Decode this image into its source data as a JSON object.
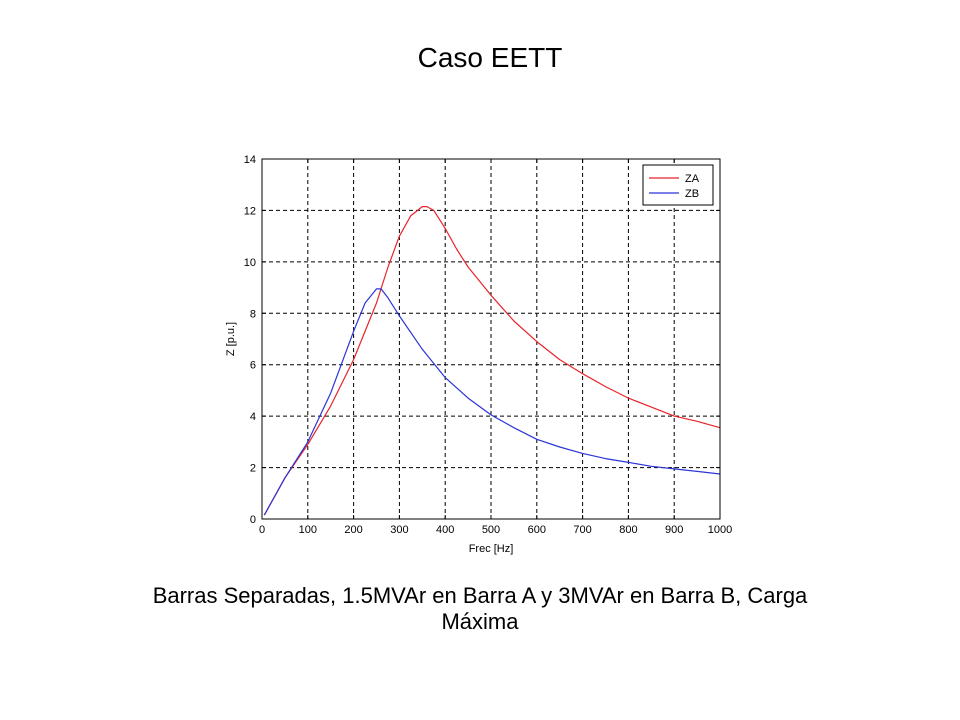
{
  "slide": {
    "title": "Caso EETT",
    "caption_line1": "Barras Separadas, 1.5MVAr en Barra A y 3MVAr en Barra B, Carga",
    "caption_line2": "Máxima"
  },
  "chart_data": {
    "type": "line",
    "xlabel": "Frec [Hz]",
    "ylabel": "Z [p.u.]",
    "xlim": [
      0,
      1000
    ],
    "ylim": [
      0,
      14
    ],
    "xticks": [
      0,
      100,
      200,
      300,
      400,
      500,
      600,
      700,
      800,
      900,
      1000
    ],
    "yticks": [
      0,
      2,
      4,
      6,
      8,
      10,
      12,
      14
    ],
    "grid": true,
    "legend_position": "top-right",
    "series": [
      {
        "name": "ZA",
        "color": "#e8232a",
        "x": [
          5,
          50,
          100,
          150,
          200,
          250,
          275,
          300,
          325,
          350,
          360,
          375,
          400,
          425,
          450,
          500,
          550,
          600,
          650,
          700,
          750,
          800,
          850,
          900,
          950,
          1000
        ],
        "y": [
          0.15,
          1.6,
          2.9,
          4.4,
          6.2,
          8.4,
          9.8,
          11.0,
          11.8,
          12.15,
          12.15,
          12.0,
          11.3,
          10.5,
          9.8,
          8.7,
          7.7,
          6.9,
          6.2,
          5.65,
          5.15,
          4.7,
          4.35,
          4.0,
          3.8,
          3.55
        ]
      },
      {
        "name": "ZB",
        "color": "#2b35d8",
        "x": [
          5,
          50,
          100,
          150,
          200,
          225,
          250,
          260,
          275,
          300,
          350,
          400,
          450,
          500,
          550,
          600,
          650,
          700,
          750,
          800,
          850,
          900,
          950,
          1000
        ],
        "y": [
          0.15,
          1.6,
          3.0,
          4.9,
          7.3,
          8.4,
          8.95,
          8.95,
          8.6,
          7.9,
          6.6,
          5.5,
          4.7,
          4.05,
          3.55,
          3.1,
          2.8,
          2.55,
          2.35,
          2.2,
          2.05,
          1.95,
          1.85,
          1.75
        ]
      }
    ]
  }
}
